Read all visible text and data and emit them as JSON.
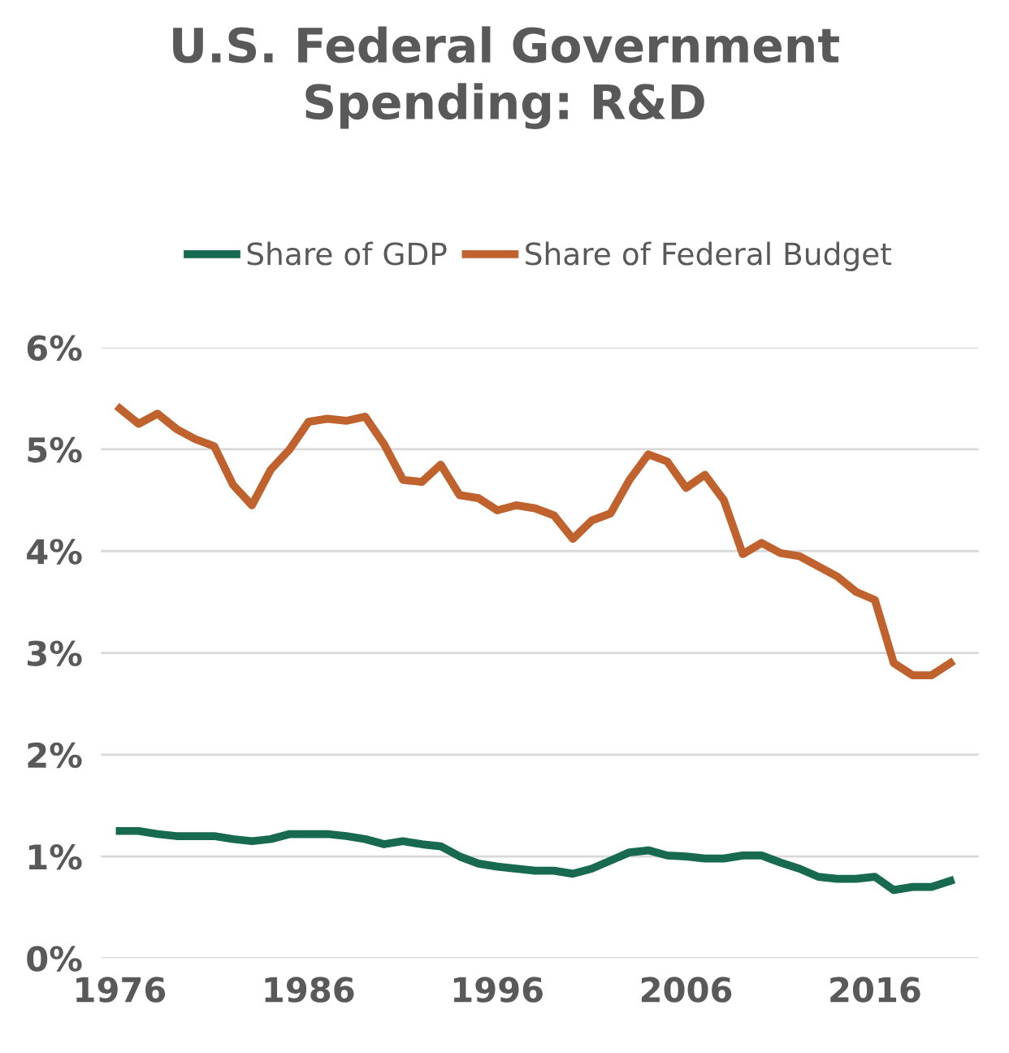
{
  "chart_data": {
    "type": "line",
    "title": "U.S. Federal Government\nSpending: R&D",
    "x": [
      1976,
      1977,
      1978,
      1979,
      1980,
      1981,
      1982,
      1983,
      1984,
      1985,
      1986,
      1987,
      1988,
      1989,
      1990,
      1991,
      1992,
      1993,
      1994,
      1995,
      1996,
      1997,
      1998,
      1999,
      2000,
      2001,
      2002,
      2003,
      2004,
      2005,
      2006,
      2007,
      2008,
      2009,
      2010,
      2011,
      2012,
      2013,
      2014,
      2015,
      2016,
      2017,
      2018,
      2019,
      2020
    ],
    "series": [
      {
        "name": "Share of GDP",
        "color": "#17694f",
        "values": [
          1.25,
          1.25,
          1.22,
          1.2,
          1.2,
          1.2,
          1.17,
          1.15,
          1.17,
          1.22,
          1.22,
          1.22,
          1.2,
          1.17,
          1.12,
          1.15,
          1.12,
          1.1,
          1.0,
          0.93,
          0.9,
          0.88,
          0.86,
          0.86,
          0.83,
          0.88,
          0.96,
          1.04,
          1.06,
          1.01,
          1.0,
          0.98,
          0.98,
          1.01,
          1.01,
          0.94,
          0.88,
          0.8,
          0.78,
          0.78,
          0.8,
          0.67,
          0.7,
          0.7,
          0.76
        ]
      },
      {
        "name": "Share of Federal Budget",
        "color": "#c0622e",
        "values": [
          5.4,
          5.25,
          5.35,
          5.2,
          5.1,
          5.03,
          4.65,
          4.45,
          4.8,
          5.0,
          5.27,
          5.3,
          5.28,
          5.32,
          5.05,
          4.7,
          4.68,
          4.85,
          4.55,
          4.52,
          4.4,
          4.45,
          4.42,
          4.35,
          4.12,
          4.3,
          4.37,
          4.7,
          4.95,
          4.88,
          4.62,
          4.75,
          4.5,
          3.97,
          4.08,
          3.98,
          3.95,
          3.85,
          3.75,
          3.6,
          3.52,
          2.9,
          2.78,
          2.78,
          2.9
        ]
      }
    ],
    "xlim": [
      1975,
      2021.5
    ],
    "xticks": [
      1976,
      1986,
      1996,
      2006,
      2016
    ],
    "ylim": [
      0,
      6
    ],
    "yticks": [
      {
        "value": 0,
        "label": "0%"
      },
      {
        "value": 1,
        "label": "1%"
      },
      {
        "value": 2,
        "label": "2%"
      },
      {
        "value": 3,
        "label": "3%"
      },
      {
        "value": 4,
        "label": "4%"
      },
      {
        "value": 5,
        "label": "5%"
      },
      {
        "value": 6,
        "label": "6%"
      }
    ],
    "grid": "y",
    "legend": "top",
    "marker": "none",
    "line_style": "solid"
  }
}
